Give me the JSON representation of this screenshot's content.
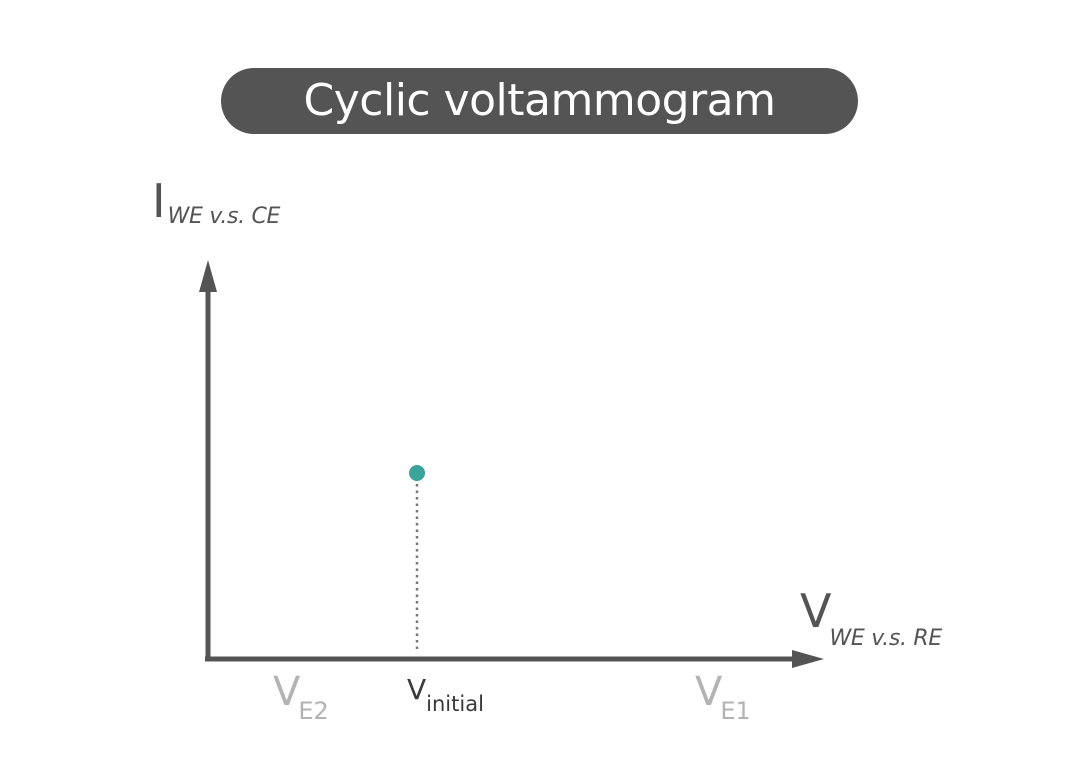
{
  "title": "Cyclic voltammogram",
  "y_axis": {
    "main": "I",
    "sub": "WE v.s. CE"
  },
  "x_axis": {
    "main": "V",
    "sub": "WE v.s. RE"
  },
  "ticks": {
    "e2": {
      "main": "V",
      "sub": "E2"
    },
    "initial": {
      "main": "V",
      "sub": "initial"
    },
    "e1": {
      "main": "V",
      "sub": "E1"
    }
  },
  "colors": {
    "axis": "#545454",
    "title_bg": "#545454",
    "point": "#3aa39a",
    "tick_secondary": "#b3b3b3",
    "guide": "#777777"
  }
}
